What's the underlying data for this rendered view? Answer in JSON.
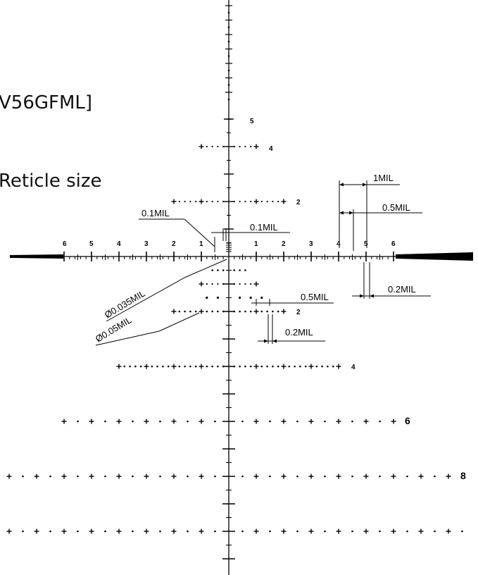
{
  "text_fragments": {
    "model_fragment": "V56GFML]",
    "reticle_size_fragment": "Reticle size"
  },
  "horizontal_scale_labels": [
    "6",
    "5",
    "4",
    "3",
    "2",
    "1",
    "1",
    "2",
    "3",
    "4",
    "5",
    "6"
  ],
  "upper_post_labels": [
    "5",
    "4",
    "2"
  ],
  "lower_post_labels": [
    "2",
    "4",
    "6",
    "8"
  ],
  "dimension_labels": {
    "one_mil": "1MIL",
    "half_mil_top": "0.5MIL",
    "tenth_mil_left": "0.1MIL",
    "tenth_mil_right": "0.1MIL",
    "dot_035": "Ø0.035MIL",
    "dot_05": "Ø0.05MIL",
    "half_mil_bottom": "0.5MIL",
    "fifth_mil_right": "0.2MIL",
    "fifth_mil_bottom": "0.2MIL"
  },
  "colors": {
    "ink": "#000000",
    "background": "#ffffff"
  }
}
